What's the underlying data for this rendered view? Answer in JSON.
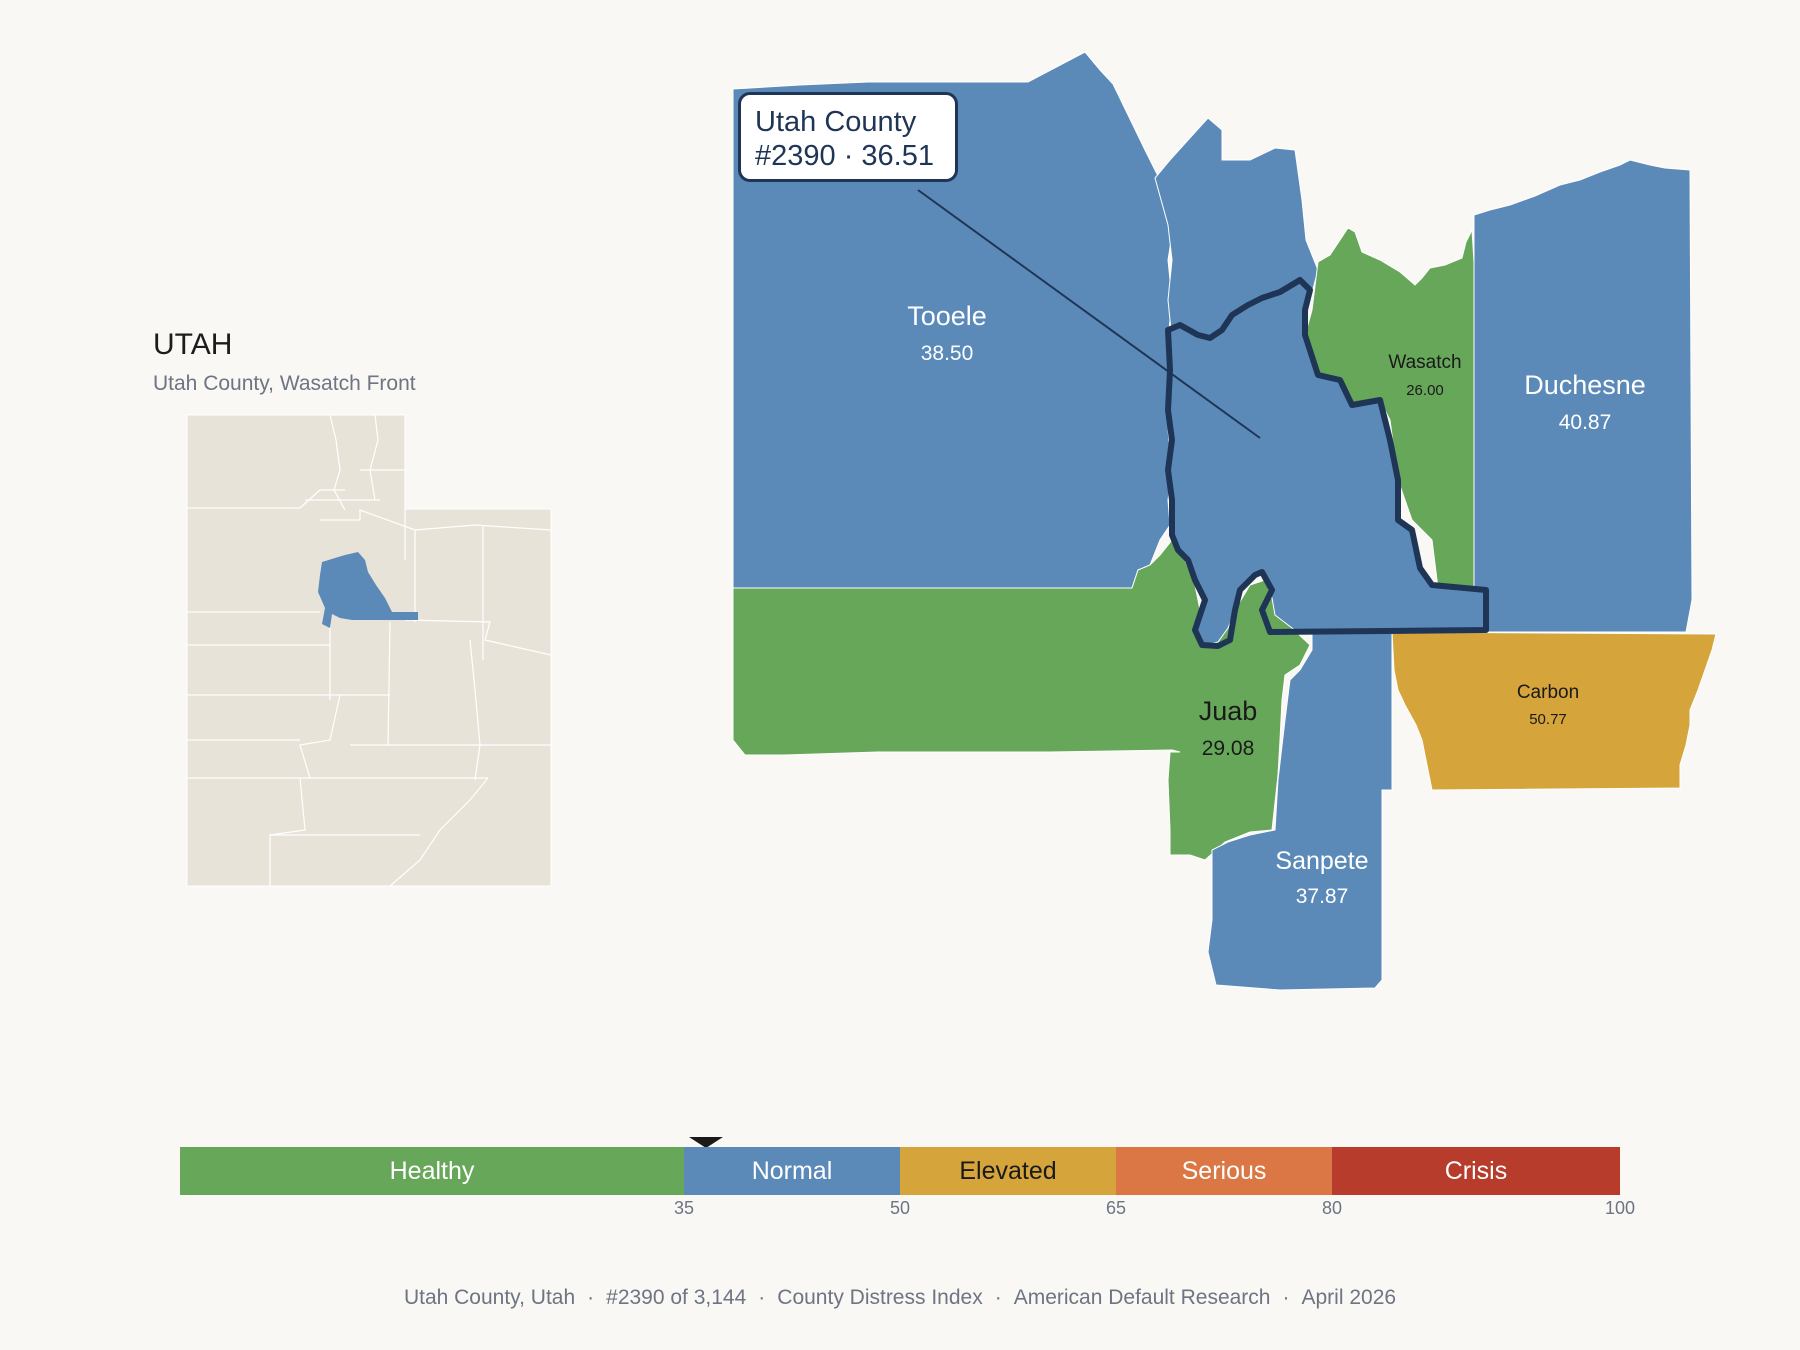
{
  "locator": {
    "state_title": "UTAH",
    "subtitle": "Utah County, Wasatch Front"
  },
  "callout": {
    "line1": "Utah County",
    "line2": "#2390 · 36.51"
  },
  "counties": [
    {
      "id": "tooele",
      "name": "Tooele",
      "value": "38.50",
      "category": "Normal"
    },
    {
      "id": "wasatch",
      "name": "Wasatch",
      "value": "26.00",
      "category": "Healthy"
    },
    {
      "id": "duchesne",
      "name": "Duchesne",
      "value": "40.87",
      "category": "Normal"
    },
    {
      "id": "juab",
      "name": "Juab",
      "value": "29.08",
      "category": "Healthy"
    },
    {
      "id": "sanpete",
      "name": "Sanpete",
      "value": "37.87",
      "category": "Normal"
    },
    {
      "id": "carbon",
      "name": "Carbon",
      "value": "50.77",
      "category": "Elevated"
    },
    {
      "id": "utah",
      "name": "Utah County",
      "value": "36.51",
      "category": "Normal",
      "highlighted": true
    }
  ],
  "scale": {
    "pointer_value": 36.51,
    "segments": [
      {
        "label": "Healthy",
        "from": 0,
        "to": 35,
        "color": "#67a75a",
        "text_color": "#ffffff"
      },
      {
        "label": "Normal",
        "from": 35,
        "to": 50,
        "color": "#5b8ab9",
        "text_color": "#ffffff"
      },
      {
        "label": "Elevated",
        "from": 50,
        "to": 65,
        "color": "#d5a43a",
        "text_color": "#1a1a1a"
      },
      {
        "label": "Serious",
        "from": 65,
        "to": 80,
        "color": "#db7745",
        "text_color": "#ffffff"
      },
      {
        "label": "Crisis",
        "from": 80,
        "to": 100,
        "color": "#b83c2c",
        "text_color": "#ffffff"
      }
    ],
    "ticks": [
      "35",
      "50",
      "65",
      "80",
      "100"
    ]
  },
  "footer": {
    "county": "Utah County, Utah",
    "rank": "#2390 of 3,144",
    "index": "County Distress Index",
    "source": "American Default Research",
    "date": "April 2026"
  },
  "colors": {
    "healthy": "#67a75a",
    "normal": "#5b8ab9",
    "elevated": "#d5a43a",
    "locator_fill": "#e8e3d8",
    "highlight_stroke": "#1f3556",
    "background": "#f9f8f5"
  }
}
